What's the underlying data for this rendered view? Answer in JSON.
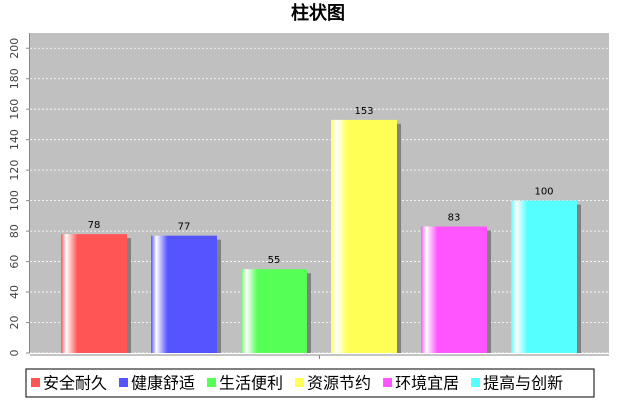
{
  "chart_data": {
    "type": "bar",
    "title": "柱状图",
    "series": [
      {
        "name": "安全耐久",
        "color": "#ff5555",
        "values": [
          78
        ]
      },
      {
        "name": "健康舒适",
        "color": "#5555ff",
        "values": [
          77
        ]
      },
      {
        "name": "生活便利",
        "color": "#55ff55",
        "values": [
          55
        ]
      },
      {
        "name": "资源节约",
        "color": "#ffff55",
        "values": [
          153
        ]
      },
      {
        "name": "环境宜居",
        "color": "#ff55ff",
        "values": [
          83
        ]
      },
      {
        "name": "提高与创新",
        "color": "#55ffff",
        "values": [
          100
        ]
      }
    ],
    "ylim": [
      0,
      210
    ],
    "yticks": [
      0,
      20,
      40,
      60,
      80,
      100,
      120,
      140,
      160,
      180,
      200
    ],
    "grid": true
  }
}
